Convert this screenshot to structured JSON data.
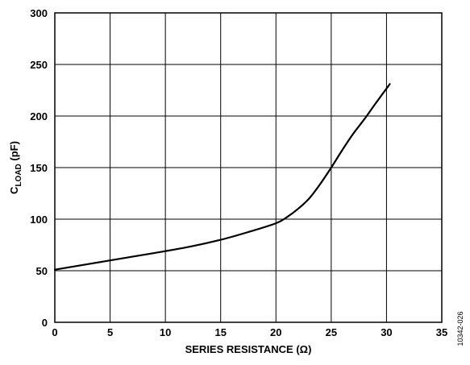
{
  "chart_data": {
    "type": "line",
    "xlabel": "SERIES RESISTANCE (Ω)",
    "ylabel_main": "C",
    "ylabel_sub": "LOAD",
    "ylabel_tail": " (pF)",
    "figure_id": "10342-026",
    "xlim": [
      0,
      35
    ],
    "ylim": [
      0,
      300
    ],
    "x_ticks": [
      0,
      5,
      10,
      15,
      20,
      25,
      30,
      35
    ],
    "y_ticks": [
      0,
      50,
      100,
      150,
      200,
      250,
      300
    ],
    "grid": true,
    "series": [
      {
        "x": [
          0,
          2.5,
          5,
          7.5,
          10,
          12.5,
          15,
          17.5,
          20,
          21,
          22,
          23,
          24,
          25,
          26,
          27,
          28,
          29,
          30.3
        ],
        "y": [
          51,
          55.5,
          60,
          64.5,
          69,
          74,
          80,
          87.5,
          96,
          102,
          110,
          120,
          134,
          150,
          167,
          183,
          197,
          212,
          231
        ]
      }
    ]
  }
}
